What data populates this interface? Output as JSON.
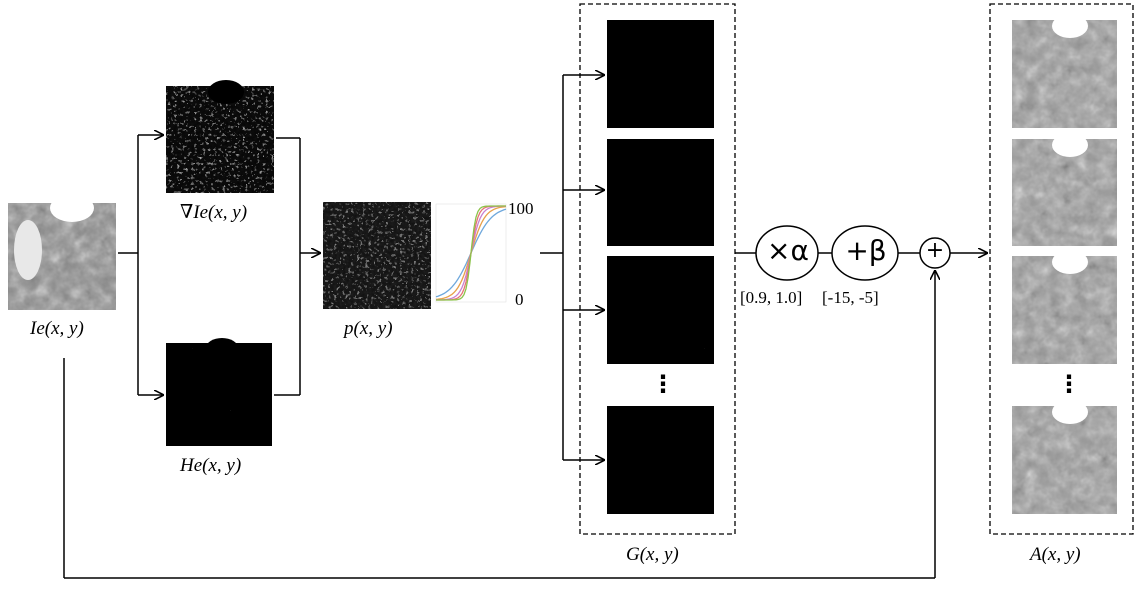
{
  "labels": {
    "input": "Ie(x, y)",
    "gradient": "∇Ie(x, y)",
    "entropy": "He(x, y)",
    "prob": "p(x, y)",
    "gen": "G(x, y)",
    "aug": "A(x, y)"
  },
  "curve": {
    "max_label": "100",
    "min_label": "0"
  },
  "ops": {
    "scale_symbol": "×α",
    "scale_range": "[0.9, 1.0]",
    "shift_symbol": "+β",
    "shift_range": "[-15, -5]",
    "sum_symbol": "+"
  },
  "ellipsis": "⋮",
  "curve_colors": [
    "#6fa8dc",
    "#e8a04b",
    "#c97fd0",
    "#e57373",
    "#8bc34a"
  ]
}
